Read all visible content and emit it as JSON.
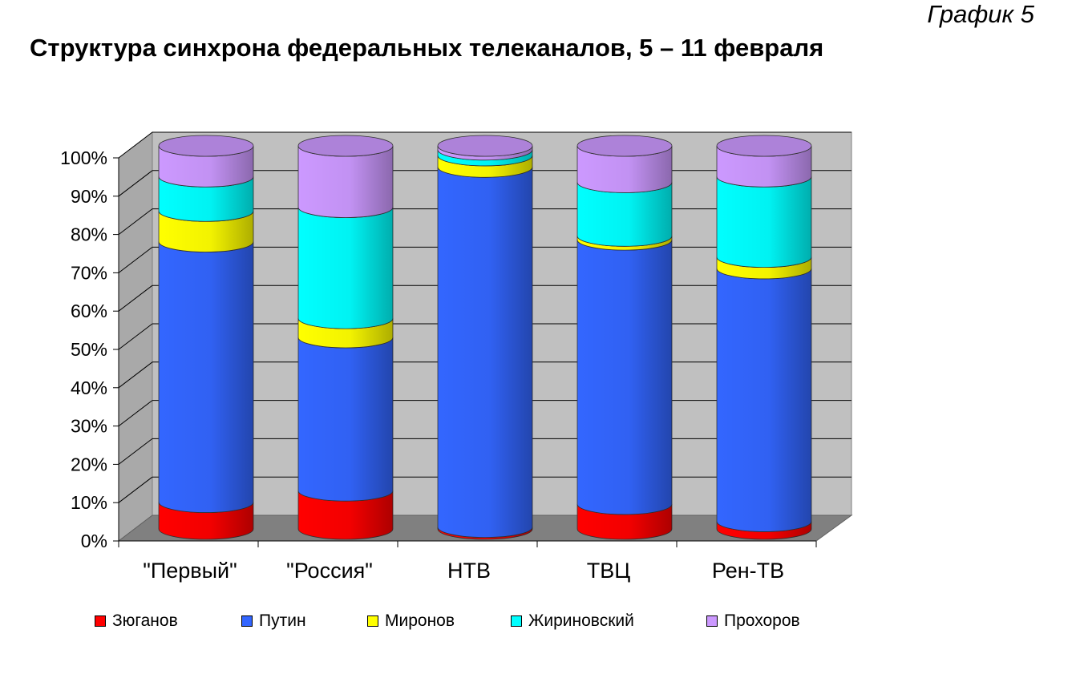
{
  "header": {
    "label": "График 5",
    "title": "Структура синхрона федеральных телеканалов, 5 – 11 февраля"
  },
  "chart_data": {
    "type": "bar",
    "stacked": true,
    "style": "3d-cylinder",
    "categories": [
      "\"Первый\"",
      "\"Россия\"",
      "НТВ",
      "ТВЦ",
      "Рен-ТВ"
    ],
    "series": [
      {
        "name": "Зюганов",
        "color": "#ff0000",
        "values": [
          7,
          10,
          0.5,
          6.5,
          2
        ]
      },
      {
        "name": "Путин",
        "color": "#3366ff",
        "values": [
          68,
          40,
          94,
          69,
          66
        ]
      },
      {
        "name": "Миронов",
        "color": "#ffff00",
        "values": [
          8,
          5,
          3,
          1,
          3
        ]
      },
      {
        "name": "Жириновский",
        "color": "#00ffff",
        "values": [
          9,
          29,
          1.5,
          14,
          21
        ]
      },
      {
        "name": "Прохоров",
        "color": "#cc99ff",
        "values": [
          8,
          16,
          1,
          9.5,
          8
        ]
      }
    ],
    "y_ticks": [
      "0%",
      "10%",
      "20%",
      "30%",
      "40%",
      "50%",
      "60%",
      "70%",
      "80%",
      "90%",
      "100%"
    ],
    "ylim": [
      0,
      100
    ],
    "grid": true,
    "legend_position": "bottom"
  }
}
